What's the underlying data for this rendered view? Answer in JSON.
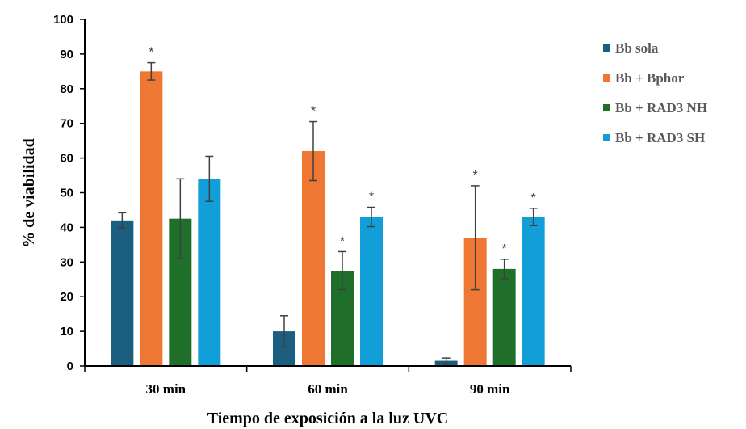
{
  "chart_data": {
    "type": "bar",
    "xlabel": "Tiempo de exposición a la luz UVC",
    "ylabel": "% de viabilidad",
    "ylim": [
      0,
      100
    ],
    "yticks": [
      "0",
      "10",
      "20",
      "30",
      "40",
      "50",
      "60",
      "70",
      "80",
      "90",
      "100"
    ],
    "categories": [
      "30 min",
      "60 min",
      "90 min"
    ],
    "series": [
      {
        "name": "Bb sola",
        "color": "#1b5e80",
        "values": [
          42,
          10,
          1.5
        ],
        "errors": [
          2.2,
          4.5,
          0.8
        ],
        "significance": [
          "",
          "",
          ""
        ]
      },
      {
        "name": "Bb + Bphor",
        "color": "#ed7733",
        "values": [
          85,
          62,
          37
        ],
        "errors": [
          2.5,
          8.5,
          15
        ],
        "significance": [
          "*",
          "*",
          "*"
        ]
      },
      {
        "name": "Bb + RAD3 NH",
        "color": "#1f6f2b",
        "values": [
          42.5,
          27.5,
          28
        ],
        "errors": [
          11.5,
          5.5,
          2.8
        ],
        "significance": [
          "",
          "*",
          "*"
        ]
      },
      {
        "name": "Bb + RAD3 SH",
        "color": "#129fd8",
        "values": [
          54,
          43,
          43
        ],
        "errors": [
          6.5,
          2.8,
          2.5
        ],
        "significance": [
          "",
          "*",
          "*"
        ]
      }
    ],
    "legend_position": "right",
    "grid": false
  }
}
